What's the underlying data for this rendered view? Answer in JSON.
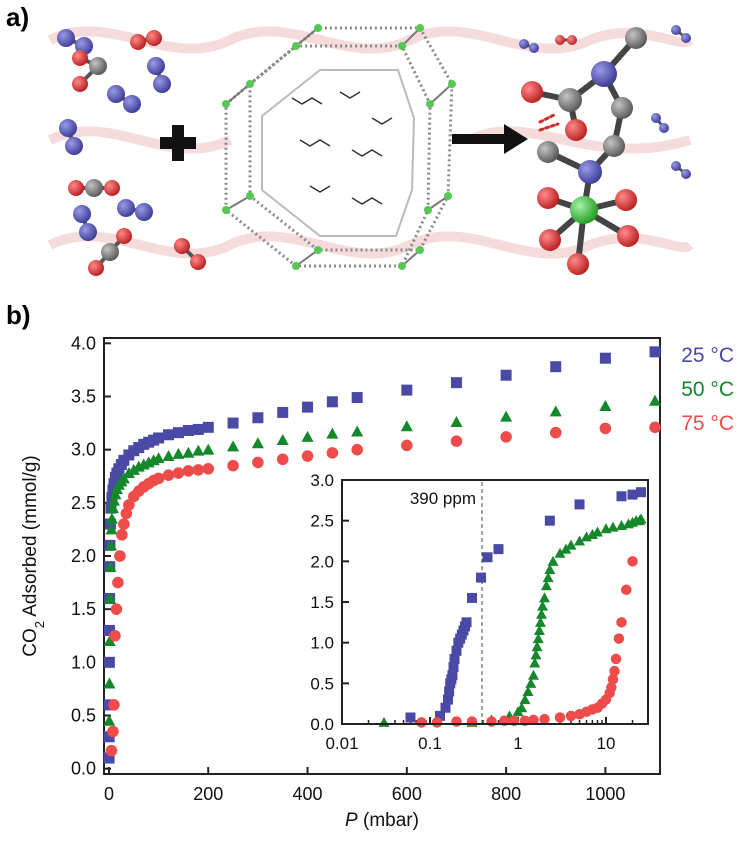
{
  "panels": {
    "a": "a)",
    "b": "b)"
  },
  "scheme": {
    "colors": {
      "nitrogen": "#4b4aa8",
      "oxygen": "#d42a2a",
      "carbon": "#7d7d7d",
      "metal": "#3cc83c",
      "background_pattern": "#f2c7c7",
      "arrow": "#000000"
    },
    "icons": [
      "plus-icon",
      "right-arrow-icon"
    ]
  },
  "chart_data": {
    "type": "scatter",
    "xlabel": "P (mbar)",
    "xlabel_italic": "P",
    "xlabel_rest": " (mbar)",
    "ylabel": "CO2 Adsorbed (mmol/g)",
    "ylabel_pre": "CO",
    "ylabel_sub": "2",
    "ylabel_post": " Adsorbed (mmol/g)",
    "xlim": [
      -10,
      1110
    ],
    "ylim": [
      -0.05,
      4.05
    ],
    "xticks": [
      0,
      200,
      400,
      600,
      800,
      1000
    ],
    "yticks": [
      0.0,
      0.5,
      1.0,
      1.5,
      2.0,
      2.5,
      3.0,
      3.5,
      4.0
    ],
    "xtick_labels": [
      "0",
      "200",
      "400",
      "600",
      "800",
      "1000"
    ],
    "ytick_labels": [
      "0.0",
      "0.5",
      "1.0",
      "1.5",
      "2.0",
      "2.5",
      "3.0",
      "3.5",
      "4.0"
    ],
    "series": [
      {
        "name": "25 °C",
        "color": "#4a4aa6",
        "marker": "square",
        "x": [
          0.2,
          0.4,
          0.6,
          0.8,
          1,
          1.3,
          1.6,
          2,
          3,
          4,
          6,
          8,
          10,
          13,
          16,
          20,
          25,
          30,
          40,
          50,
          60,
          70,
          80,
          90,
          100,
          120,
          140,
          160,
          180,
          200,
          250,
          300,
          350,
          400,
          450,
          500,
          600,
          700,
          800,
          900,
          1000,
          1100
        ],
        "y": [
          0.1,
          0.3,
          0.6,
          1.0,
          1.3,
          1.6,
          1.9,
          2.1,
          2.3,
          2.45,
          2.55,
          2.62,
          2.68,
          2.74,
          2.78,
          2.82,
          2.86,
          2.9,
          2.95,
          2.99,
          3.02,
          3.05,
          3.07,
          3.09,
          3.11,
          3.14,
          3.16,
          3.18,
          3.19,
          3.21,
          3.25,
          3.3,
          3.35,
          3.4,
          3.45,
          3.49,
          3.56,
          3.63,
          3.7,
          3.78,
          3.86,
          3.92
        ]
      },
      {
        "name": "50 °C",
        "color": "#15882c",
        "marker": "triangle",
        "x": [
          0.5,
          1,
          1.5,
          2,
          3,
          4,
          5,
          6,
          8,
          10,
          13,
          16,
          20,
          25,
          30,
          40,
          50,
          60,
          70,
          80,
          90,
          100,
          120,
          140,
          160,
          180,
          200,
          250,
          300,
          350,
          400,
          450,
          500,
          600,
          700,
          800,
          900,
          1000,
          1100
        ],
        "y": [
          0.45,
          0.8,
          1.2,
          1.6,
          1.9,
          2.1,
          2.25,
          2.35,
          2.45,
          2.52,
          2.58,
          2.63,
          2.67,
          2.7,
          2.73,
          2.78,
          2.81,
          2.84,
          2.86,
          2.88,
          2.9,
          2.92,
          2.94,
          2.96,
          2.97,
          2.99,
          3.0,
          3.03,
          3.06,
          3.09,
          3.12,
          3.15,
          3.17,
          3.22,
          3.26,
          3.31,
          3.36,
          3.41,
          3.46
        ]
      },
      {
        "name": "75 °C",
        "color": "#ee4b4b",
        "marker": "circle",
        "x": [
          5,
          8,
          10,
          12,
          15,
          18,
          22,
          26,
          30,
          35,
          40,
          50,
          60,
          70,
          80,
          90,
          100,
          120,
          140,
          160,
          180,
          200,
          250,
          300,
          350,
          400,
          450,
          500,
          600,
          700,
          800,
          900,
          1000,
          1100
        ],
        "y": [
          0.17,
          0.35,
          0.6,
          1.25,
          1.5,
          1.75,
          2.0,
          2.2,
          2.3,
          2.4,
          2.48,
          2.56,
          2.61,
          2.65,
          2.68,
          2.71,
          2.73,
          2.76,
          2.78,
          2.8,
          2.81,
          2.82,
          2.85,
          2.88,
          2.91,
          2.94,
          2.97,
          3.0,
          3.04,
          3.08,
          3.12,
          3.16,
          3.2,
          3.21
        ]
      }
    ],
    "inset": {
      "type": "scatter",
      "xscale": "log",
      "xlim": [
        0.01,
        30
      ],
      "ylim": [
        0,
        3.0
      ],
      "xticks": [
        0.01,
        0.1,
        1,
        10
      ],
      "yticks": [
        0.0,
        0.5,
        1.0,
        1.5,
        2.0,
        2.5,
        3.0
      ],
      "xtick_labels": [
        "0.01",
        "0.1",
        "1",
        "10"
      ],
      "ytick_labels": [
        "0.0",
        "0.5",
        "1.0",
        "1.5",
        "2.0",
        "2.5",
        "3.0"
      ],
      "annotation": {
        "text": "390 ppm",
        "x": 0.39
      },
      "series": [
        {
          "name": "25 °C",
          "color": "#4a4aa6",
          "marker": "square",
          "x": [
            0.06,
            0.13,
            0.15,
            0.16,
            0.165,
            0.17,
            0.175,
            0.18,
            0.185,
            0.19,
            0.2,
            0.21,
            0.22,
            0.23,
            0.24,
            0.25,
            0.26,
            0.3,
            0.38,
            0.45,
            0.6,
            2.3,
            5,
            15,
            20,
            25
          ],
          "y": [
            0.08,
            0.1,
            0.2,
            0.3,
            0.4,
            0.5,
            0.55,
            0.6,
            0.7,
            0.8,
            0.9,
            1.0,
            1.05,
            1.1,
            1.15,
            1.2,
            1.25,
            1.55,
            1.8,
            2.05,
            2.15,
            2.5,
            2.7,
            2.8,
            2.82,
            2.85
          ]
        },
        {
          "name": "50 °C",
          "color": "#15882c",
          "marker": "triangle",
          "x": [
            0.03,
            0.3,
            0.5,
            0.8,
            1,
            1.1,
            1.2,
            1.3,
            1.4,
            1.5,
            1.55,
            1.6,
            1.65,
            1.7,
            1.75,
            1.8,
            1.85,
            1.9,
            2.0,
            2.1,
            2.2,
            2.3,
            2.5,
            3,
            3.5,
            4,
            5,
            6,
            7,
            8,
            10,
            12,
            15,
            18,
            20,
            22,
            24,
            25
          ],
          "y": [
            0.02,
            0.02,
            0.05,
            0.1,
            0.15,
            0.2,
            0.3,
            0.4,
            0.5,
            0.6,
            0.75,
            0.85,
            0.95,
            1.05,
            1.15,
            1.25,
            1.35,
            1.45,
            1.55,
            1.7,
            1.8,
            1.9,
            2.0,
            2.1,
            2.15,
            2.2,
            2.25,
            2.3,
            2.33,
            2.36,
            2.4,
            2.42,
            2.44,
            2.46,
            2.48,
            2.5,
            2.5,
            2.52
          ]
        },
        {
          "name": "75 °C",
          "color": "#ee4b4b",
          "marker": "circle",
          "x": [
            0.08,
            0.12,
            0.2,
            0.3,
            0.5,
            0.7,
            0.9,
            1.2,
            1.5,
            2,
            3,
            4,
            5,
            6,
            7,
            8,
            9,
            10,
            11,
            11.5,
            12,
            12.5,
            13,
            14,
            15,
            17,
            20
          ],
          "y": [
            0.02,
            0.02,
            0.03,
            0.03,
            0.03,
            0.04,
            0.04,
            0.04,
            0.05,
            0.06,
            0.08,
            0.1,
            0.12,
            0.15,
            0.18,
            0.2,
            0.25,
            0.3,
            0.38,
            0.45,
            0.55,
            0.65,
            0.8,
            1.05,
            1.25,
            1.65,
            2.0
          ]
        }
      ]
    }
  }
}
